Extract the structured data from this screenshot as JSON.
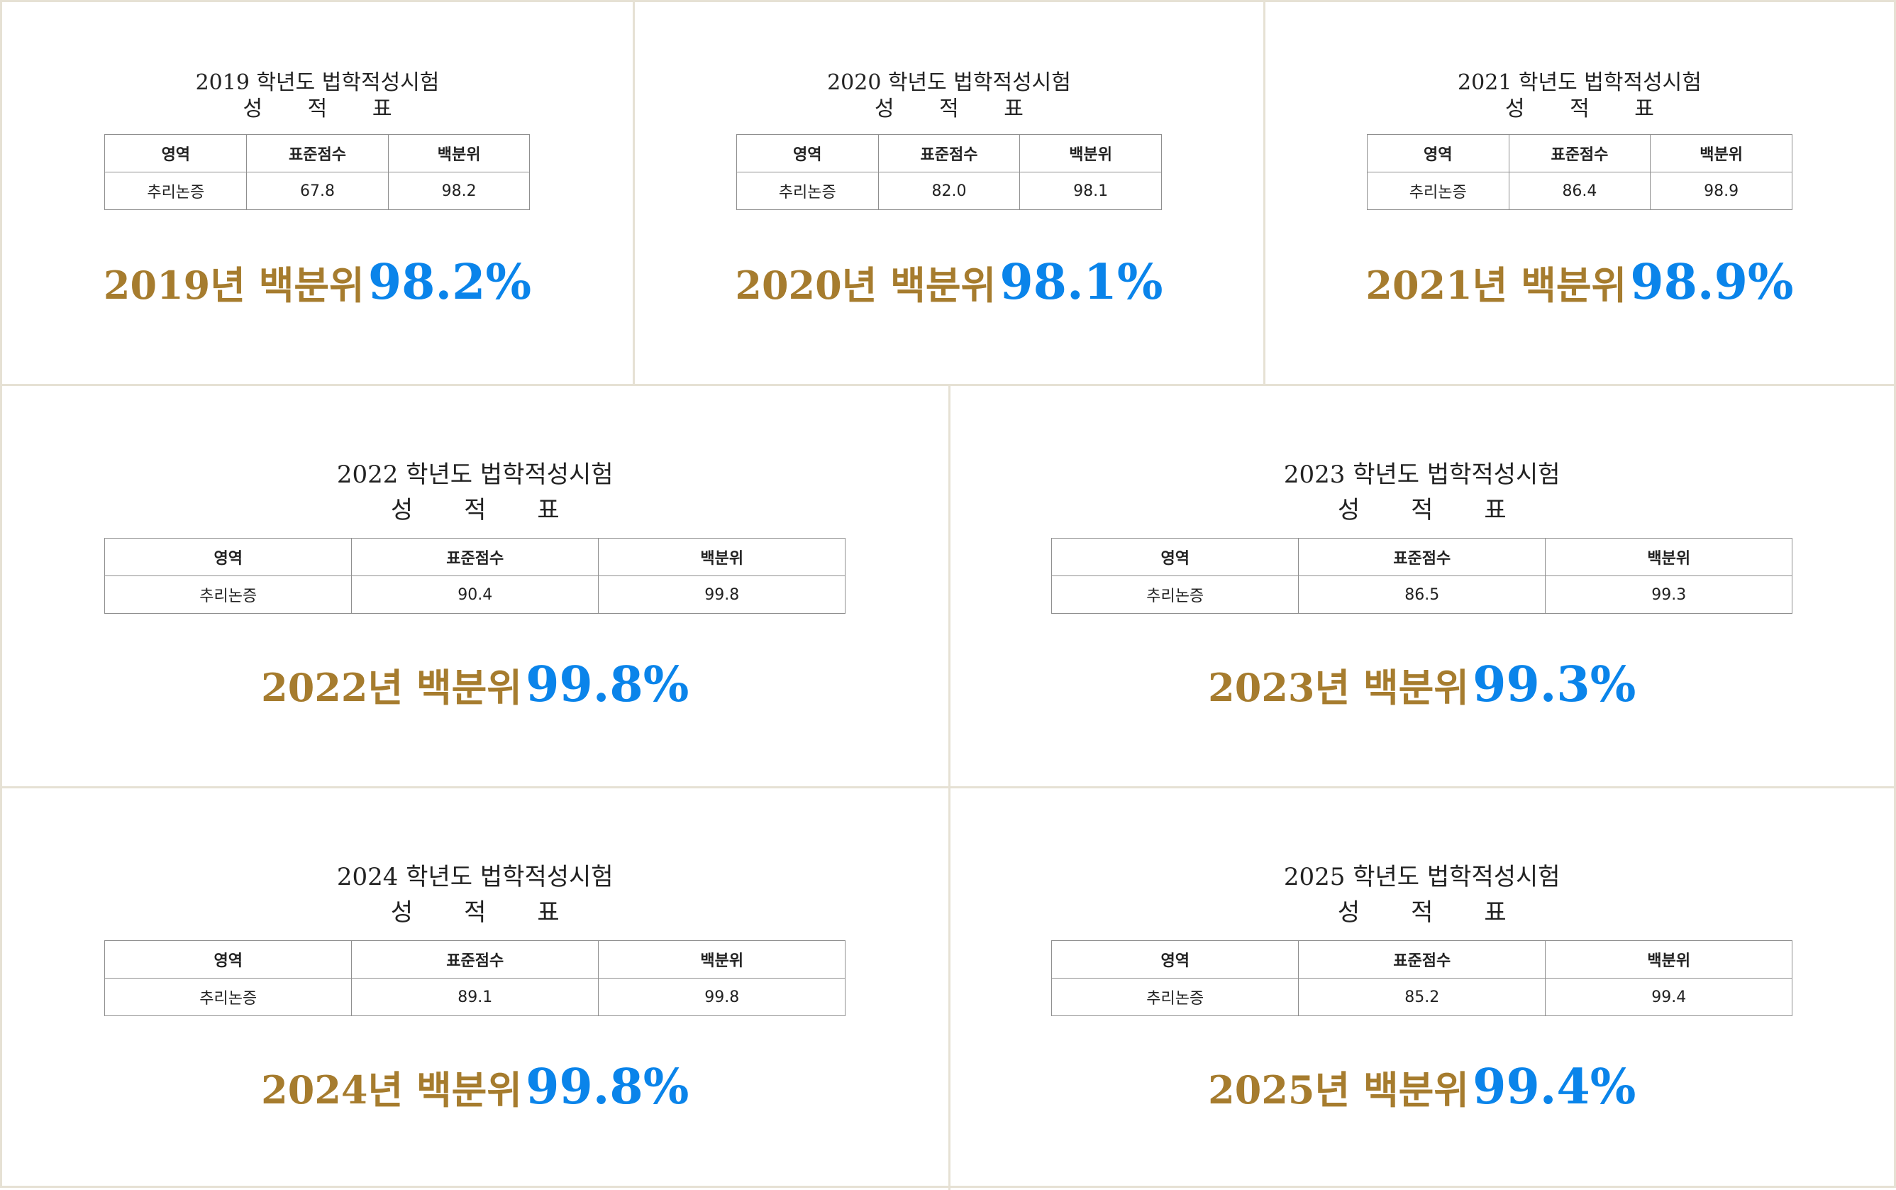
{
  "colors": {
    "accent_gold": "#a67c2e",
    "accent_blue": "#0a84ea",
    "border": "#e6e1d4"
  },
  "table_headers": [
    "영역",
    "표준점수",
    "백분위"
  ],
  "cards": [
    {
      "title": "2019 학년도 법학적성시험",
      "subtitle": "성 적 표",
      "subject": "추리논증",
      "standard_score": "67.8",
      "percentile": "98.2",
      "result_label": "2019년 백분위",
      "result_value": "98.2%"
    },
    {
      "title": "2020 학년도 법학적성시험",
      "subtitle": "성 적 표",
      "subject": "추리논증",
      "standard_score": "82.0",
      "percentile": "98.1",
      "result_label": "2020년 백분위",
      "result_value": "98.1%"
    },
    {
      "title": "2021 학년도 법학적성시험",
      "subtitle": "성 적 표",
      "subject": "추리논증",
      "standard_score": "86.4",
      "percentile": "98.9",
      "result_label": "2021년 백분위",
      "result_value": "98.9%"
    },
    {
      "title": "2022 학년도 법학적성시험",
      "subtitle": "성 적 표",
      "subject": "추리논증",
      "standard_score": "90.4",
      "percentile": "99.8",
      "result_label": "2022년 백분위",
      "result_value": "99.8%"
    },
    {
      "title": "2023 학년도 법학적성시험",
      "subtitle": "성 적 표",
      "subject": "추리논증",
      "standard_score": "86.5",
      "percentile": "99.3",
      "result_label": "2023년 백분위",
      "result_value": "99.3%"
    },
    {
      "title": "2024 학년도 법학적성시험",
      "subtitle": "성 적 표",
      "subject": "추리논증",
      "standard_score": "89.1",
      "percentile": "99.8",
      "result_label": "2024년 백분위",
      "result_value": "99.8%"
    },
    {
      "title": "2025 학년도 법학적성시험",
      "subtitle": "성 적 표",
      "subject": "추리논증",
      "standard_score": "85.2",
      "percentile": "99.4",
      "result_label": "2025년 백분위",
      "result_value": "99.4%"
    }
  ]
}
